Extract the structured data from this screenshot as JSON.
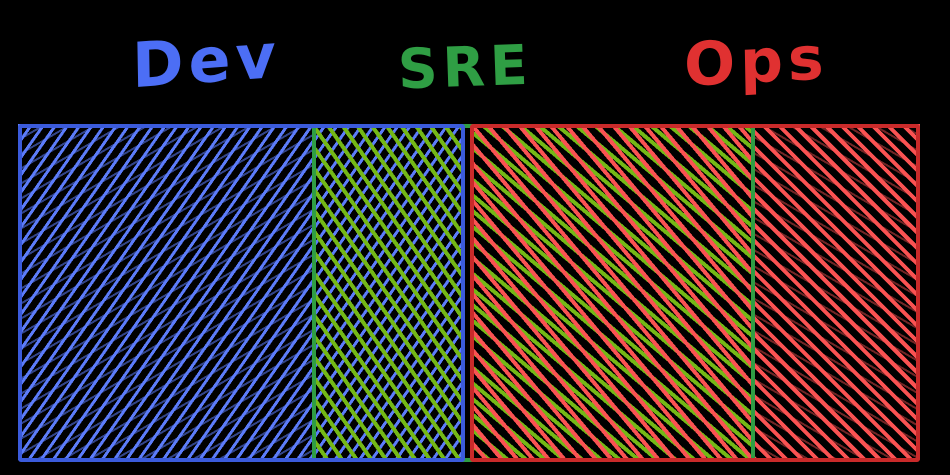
{
  "diagram": {
    "labels": {
      "dev": {
        "text": "Dev"
      },
      "sre": {
        "text": "SRE"
      },
      "ops": {
        "text": "Ops"
      }
    },
    "regions": {
      "dev_only": "Dev only",
      "dev_sre_overlap": "Dev and SRE overlap",
      "sre_ops_overlap": "SRE and Ops overlap",
      "ops_only": "Ops only"
    },
    "colors": {
      "background": "#000000",
      "dev_label": "#4c6ef5",
      "sre_label": "#2f9e44",
      "ops_label": "#e03131",
      "dev_fill": "#5c7cfa",
      "sre_fill": "#74b816",
      "ops_fill": "#fa5252",
      "dev_border": "#3b5bdb",
      "sre_border": "#2f9e44",
      "ops_border": "#c92a2a"
    }
  }
}
